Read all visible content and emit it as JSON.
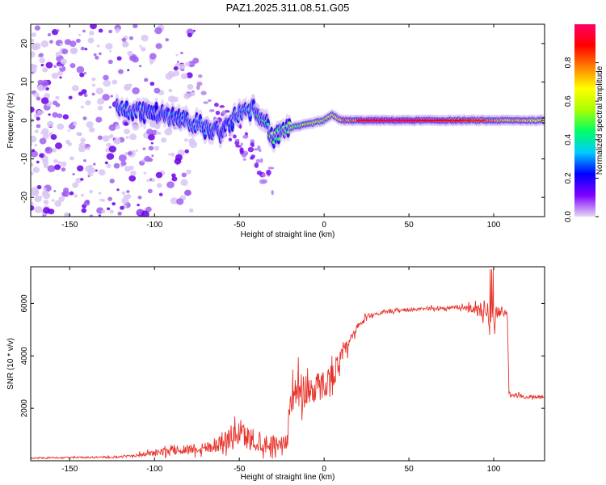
{
  "chart_data": [
    {
      "type": "heatmap",
      "title": "PAZ1.2025.311.08.51.G05",
      "xlabel": "Height of straight line (km)",
      "ylabel": "Frequency (Hz)",
      "xlim": [
        -173,
        130
      ],
      "ylim": [
        -25,
        25
      ],
      "xticks": [
        -150,
        -100,
        -50,
        0,
        50,
        100
      ],
      "xtick_labels": [
        "-150",
        "-100",
        "-50",
        "0",
        "50",
        "100"
      ],
      "yticks": [
        20,
        10,
        0,
        -10,
        -20
      ],
      "ytick_labels": [
        "20",
        "10",
        "0",
        "-10",
        "-20"
      ],
      "colorbar": {
        "label": "Normalized spectral amplitude",
        "range": [
          0,
          1
        ],
        "ticks": [
          0.0,
          0.2,
          0.4,
          0.6,
          0.8
        ],
        "tick_labels": [
          "0.0",
          "0.2",
          "0.4",
          "0.6",
          "0.8"
        ],
        "colormap": [
          "#e6d9f2",
          "#7f00ff",
          "#0000ff",
          "#00ccff",
          "#00ff66",
          "#aaff00",
          "#ffff00",
          "#ff8000",
          "#ff0000",
          "#ff0066"
        ]
      },
      "ridge": {
        "x": [
          -120,
          -100,
          -80,
          -70,
          -60,
          -50,
          -40,
          -35,
          -30,
          -25,
          -20,
          -10,
          0,
          5,
          10,
          20,
          40,
          60,
          80,
          100,
          120,
          130
        ],
        "freq_hz": [
          3,
          2,
          0,
          -2,
          -3,
          2,
          3,
          0,
          -5,
          -3,
          -2,
          -1,
          0,
          1.5,
          0,
          0,
          0,
          0,
          0,
          0,
          0,
          0
        ],
        "amplitude": [
          0.3,
          0.25,
          0.3,
          0.3,
          0.25,
          0.3,
          0.35,
          0.45,
          0.5,
          0.45,
          0.5,
          0.55,
          0.6,
          0.65,
          0.75,
          0.85,
          0.9,
          0.85,
          0.8,
          0.75,
          0.7,
          0.7
        ]
      },
      "noise_region": {
        "x_range": [
          -173,
          -100
        ],
        "freq_range": [
          -25,
          25
        ],
        "amplitude": "low (0.0-0.15)"
      }
    },
    {
      "type": "line",
      "title": "",
      "xlabel": "Height of straight line (km)",
      "ylabel": "SNR (10 * v/v)",
      "xlim": [
        -173,
        130
      ],
      "ylim": [
        0,
        7400
      ],
      "xticks": [
        -150,
        -100,
        -50,
        0,
        50,
        100
      ],
      "xtick_labels": [
        "-150",
        "-100",
        "-50",
        "0",
        "50",
        "100"
      ],
      "yticks": [
        2000,
        4000,
        6000
      ],
      "ytick_labels": [
        "2000",
        "4000",
        "6000"
      ],
      "series": [
        {
          "name": "SNR",
          "color": "#e8332a",
          "envelope": {
            "x": [
              -173,
              -150,
              -120,
              -100,
              -90,
              -80,
              -70,
              -60,
              -55,
              -50,
              -45,
              -40,
              -30,
              -22,
              -20,
              -18,
              -15,
              -10,
              -5,
              0,
              5,
              10,
              15,
              20,
              25,
              30,
              40,
              50,
              60,
              70,
              80,
              90,
              95,
              100,
              105,
              108,
              109,
              110,
              115,
              120,
              125,
              130
            ],
            "mean": [
              100,
              120,
              140,
              300,
              380,
              450,
              500,
              700,
              900,
              1050,
              900,
              700,
              650,
              700,
              2300,
              2500,
              2600,
              2700,
              2800,
              2900,
              3300,
              3900,
              4500,
              5100,
              5500,
              5600,
              5700,
              5750,
              5800,
              5820,
              5850,
              5800,
              5700,
              5600,
              5700,
              5650,
              2600,
              2450,
              2500,
              2400,
              2450,
              2400
            ],
            "spread": [
              40,
              50,
              60,
              200,
              300,
              350,
              450,
              600,
              800,
              900,
              800,
              700,
              600,
              500,
              800,
              1200,
              1400,
              1300,
              1100,
              1000,
              900,
              700,
              500,
              300,
              180,
              120,
              120,
              110,
              110,
              120,
              140,
              350,
              800,
              1000,
              200,
              150,
              200,
              120,
              150,
              140,
              120,
              100
            ]
          }
        }
      ]
    }
  ]
}
